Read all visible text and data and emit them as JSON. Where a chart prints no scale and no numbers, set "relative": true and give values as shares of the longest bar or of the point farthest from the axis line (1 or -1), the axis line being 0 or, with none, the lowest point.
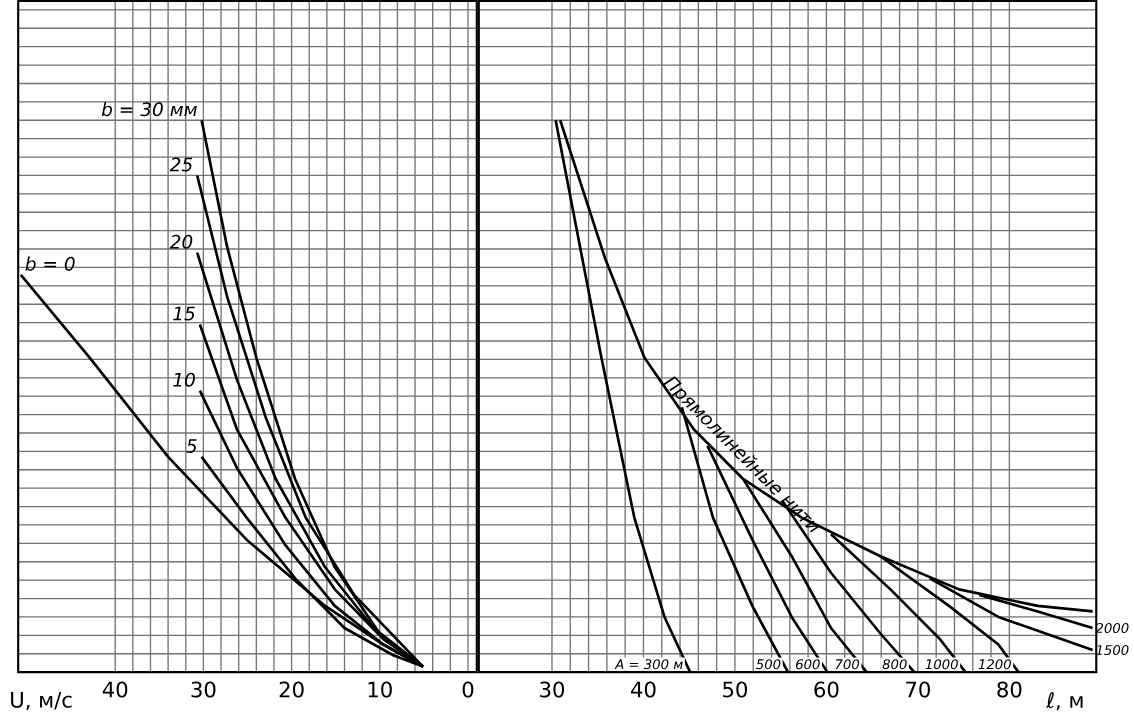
{
  "chart_data": [
    {
      "type": "line",
      "xlabel": "U, м/с",
      "xlim": [
        51,
        -1
      ],
      "xticks": [
        40,
        30,
        20,
        10,
        0
      ],
      "relative": true,
      "grid": true,
      "marker": "none",
      "line_style": "solid",
      "series": [
        {
          "name": "b = 0",
          "color": "#000000",
          "x": [
            50.7,
            42.9,
            34.0,
            25.1,
            16.2,
            9.6,
            5.1
          ],
          "values": [
            0.72,
            0.57,
            0.39,
            0.24,
            0.12,
            0.05,
            0.01
          ]
        },
        {
          "name": "5",
          "color": "#000000",
          "x": [
            30.2,
            25.1,
            19.6,
            14.0,
            8.4,
            5.1
          ],
          "values": [
            0.39,
            0.28,
            0.17,
            0.08,
            0.03,
            0.01
          ]
        },
        {
          "name": "10",
          "color": "#000000",
          "x": [
            30.4,
            26.2,
            20.7,
            15.1,
            9.6,
            5.1
          ],
          "values": [
            0.51,
            0.37,
            0.23,
            0.12,
            0.05,
            0.01
          ]
        },
        {
          "name": "15",
          "color": "#000000",
          "x": [
            30.4,
            26.2,
            20.7,
            15.1,
            9.6,
            5.1
          ],
          "values": [
            0.63,
            0.44,
            0.28,
            0.15,
            0.06,
            0.01
          ]
        },
        {
          "name": "20",
          "color": "#000000",
          "x": [
            30.7,
            26.2,
            21.8,
            16.2,
            10.7,
            5.1
          ],
          "values": [
            0.76,
            0.53,
            0.35,
            0.19,
            0.08,
            0.01
          ]
        },
        {
          "name": "25",
          "color": "#000000",
          "x": [
            30.7,
            27.3,
            22.9,
            18.4,
            12.9,
            5.1
          ],
          "values": [
            0.9,
            0.68,
            0.46,
            0.28,
            0.14,
            0.01
          ]
        },
        {
          "name": "b = 30 мм",
          "color": "#000000",
          "x": [
            30.2,
            27.3,
            24.0,
            19.6,
            15.1,
            9.6,
            5.1
          ],
          "values": [
            1.0,
            0.77,
            0.57,
            0.35,
            0.19,
            0.06,
            0.01
          ]
        }
      ]
    },
    {
      "type": "line",
      "xlabel": "ℓ, м",
      "xlim": [
        22,
        89.5
      ],
      "xticks": [
        30,
        40,
        50,
        60,
        70,
        80
      ],
      "relative": true,
      "grid": true,
      "marker": "none",
      "line_style": "solid",
      "series": [
        {
          "name": "Прямолинейные нити",
          "color": "#000000",
          "x": [
            30.9,
            35.8,
            40.1,
            45.5,
            50.9,
            57.3,
            65.9,
            74.5,
            83.1,
            89.1
          ],
          "values": [
            1.0,
            0.75,
            0.57,
            0.44,
            0.35,
            0.28,
            0.21,
            0.15,
            0.12,
            0.11
          ]
        },
        {
          "name": "A = 300 м",
          "color": "#000000",
          "x": [
            30.4,
            35.4,
            39.0,
            42.3,
            45.1
          ],
          "values": [
            1.0,
            0.57,
            0.28,
            0.1,
            0
          ]
        },
        {
          "name": "500",
          "color": "#000000",
          "x": [
            44.2,
            47.6,
            51.9,
            55.8
          ],
          "values": [
            0.48,
            0.28,
            0.12,
            0
          ]
        },
        {
          "name": "600",
          "color": "#000000",
          "x": [
            47.0,
            51.9,
            56.2,
            60.1
          ],
          "values": [
            0.41,
            0.24,
            0.1,
            0
          ]
        },
        {
          "name": "700",
          "color": "#000000",
          "x": [
            50.9,
            56.2,
            60.5,
            64.4
          ],
          "values": [
            0.35,
            0.21,
            0.08,
            0
          ]
        },
        {
          "name": "800",
          "color": "#000000",
          "x": [
            55.2,
            60.5,
            65.9,
            69.6
          ],
          "values": [
            0.31,
            0.18,
            0.07,
            0
          ]
        },
        {
          "name": "1000",
          "color": "#000000",
          "x": [
            60.5,
            67.0,
            72.4,
            75.2
          ],
          "values": [
            0.25,
            0.15,
            0.06,
            0
          ]
        },
        {
          "name": "1200",
          "color": "#000000",
          "x": [
            65.9,
            73.4,
            78.8,
            81.0
          ],
          "values": [
            0.21,
            0.12,
            0.05,
            0
          ]
        },
        {
          "name": "1500",
          "color": "#000000",
          "x": [
            71.3,
            78.8,
            89.1
          ],
          "values": [
            0.17,
            0.1,
            0.04
          ]
        },
        {
          "name": "2000",
          "color": "#000000",
          "x": [
            76.7,
            83.1,
            89.1
          ],
          "values": [
            0.14,
            0.11,
            0.08
          ]
        }
      ]
    }
  ]
}
